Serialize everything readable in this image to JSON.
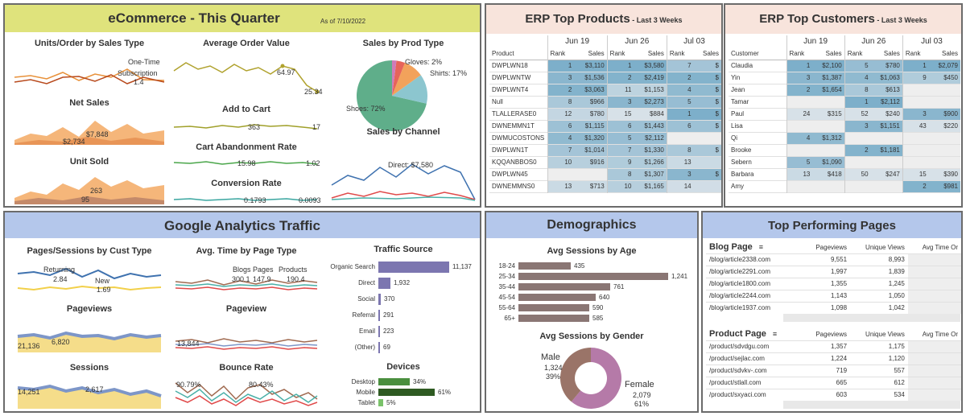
{
  "ecommerce": {
    "title": "eCommerce - This Quarter",
    "as_of": "As of 7/10/2022",
    "units_order": {
      "title": "Units/Order by Sales Type",
      "one_time": "One-Time",
      "subscription": "Subscription",
      "value": "1.4"
    },
    "aov": {
      "title": "Average Order Value",
      "v1": "64.97",
      "v2": "25.34"
    },
    "prod_type": {
      "title": "Sales by Prod Type",
      "gloves": "Gloves: 2%",
      "shirts": "Shirts: 17%",
      "shoes": "Shoes: 72%"
    },
    "net_sales": {
      "title": "Net Sales",
      "v1": "$7,848",
      "v2": "$2,734"
    },
    "add_cart": {
      "title": "Add to Cart",
      "v1": "363",
      "v2": "17"
    },
    "channel": {
      "title": "Sales by Channel",
      "direct": "Direct: $7,580"
    },
    "unit_sold": {
      "title": "Unit Sold",
      "v1": "263",
      "v2": "95"
    },
    "cart_abandon": {
      "title": "Cart Abandonment Rate",
      "v1": "15.98",
      "v2": "1.02"
    },
    "conversion": {
      "title": "Conversion Rate",
      "v1": "0.1793",
      "v2": "0.0093"
    }
  },
  "erp_products": {
    "title": "ERP Top Products",
    "subtitle": " - Last 3 Weeks",
    "row_header": "Product",
    "weeks": [
      "Jun 19",
      "Jun 26",
      "Jul 03"
    ],
    "sub": [
      "Rank",
      "Sales"
    ],
    "rows": [
      {
        "name": "DWPLWN18",
        "c": [
          [
            "1",
            "$3,110"
          ],
          [
            "1",
            "$3,580"
          ],
          [
            "7",
            "$"
          ]
        ]
      },
      {
        "name": "DWPLWNTW",
        "c": [
          [
            "3",
            "$1,536"
          ],
          [
            "2",
            "$2,419"
          ],
          [
            "2",
            "$"
          ]
        ]
      },
      {
        "name": "DWPLWNT4",
        "c": [
          [
            "2",
            "$3,063"
          ],
          [
            "11",
            "$1,153"
          ],
          [
            "4",
            "$"
          ]
        ]
      },
      {
        "name": "Null",
        "c": [
          [
            "8",
            "$966"
          ],
          [
            "3",
            "$2,273"
          ],
          [
            "5",
            "$"
          ]
        ]
      },
      {
        "name": "TLALLERASE0",
        "c": [
          [
            "12",
            "$780"
          ],
          [
            "15",
            "$884"
          ],
          [
            "1",
            "$"
          ]
        ]
      },
      {
        "name": "DWNEMMN1T",
        "c": [
          [
            "6",
            "$1,115"
          ],
          [
            "6",
            "$1,443"
          ],
          [
            "6",
            "$"
          ]
        ]
      },
      {
        "name": "DWMUCOSTONS",
        "c": [
          [
            "4",
            "$1,320"
          ],
          [
            "5",
            "$2,112"
          ],
          [
            "",
            ""
          ]
        ]
      },
      {
        "name": "DWPLWN1T",
        "c": [
          [
            "7",
            "$1,014"
          ],
          [
            "7",
            "$1,330"
          ],
          [
            "8",
            "$"
          ]
        ]
      },
      {
        "name": "KQQANBBOS0",
        "c": [
          [
            "10",
            "$916"
          ],
          [
            "9",
            "$1,266"
          ],
          [
            "13",
            ""
          ]
        ]
      },
      {
        "name": "DWPLWN45",
        "c": [
          [
            "",
            ""
          ],
          [
            "8",
            "$1,307"
          ],
          [
            "3",
            "$"
          ]
        ]
      },
      {
        "name": "DWNEMMNS0",
        "c": [
          [
            "13",
            "$713"
          ],
          [
            "10",
            "$1,165"
          ],
          [
            "14",
            ""
          ]
        ]
      }
    ]
  },
  "erp_customers": {
    "title": "ERP Top Customers",
    "subtitle": " - Last 3 Weeks",
    "row_header": "Customer",
    "weeks": [
      "Jun 19",
      "Jun 26",
      "Jul 03"
    ],
    "sub": [
      "Rank",
      "Sales"
    ],
    "rows": [
      {
        "name": "Claudia",
        "c": [
          [
            "1",
            "$2,100"
          ],
          [
            "5",
            "$780"
          ],
          [
            "1",
            "$2,079"
          ]
        ]
      },
      {
        "name": "Yin",
        "c": [
          [
            "3",
            "$1,387"
          ],
          [
            "4",
            "$1,063"
          ],
          [
            "9",
            "$450"
          ]
        ]
      },
      {
        "name": "Jean",
        "c": [
          [
            "2",
            "$1,654"
          ],
          [
            "8",
            "$613"
          ],
          [
            "",
            ""
          ]
        ]
      },
      {
        "name": "Tamar",
        "c": [
          [
            "",
            ""
          ],
          [
            "1",
            "$2,112"
          ],
          [
            "",
            ""
          ]
        ]
      },
      {
        "name": "Paul",
        "c": [
          [
            "24",
            "$315"
          ],
          [
            "52",
            "$240"
          ],
          [
            "3",
            "$900"
          ]
        ]
      },
      {
        "name": "Lisa",
        "c": [
          [
            "",
            ""
          ],
          [
            "3",
            "$1,151"
          ],
          [
            "43",
            "$220"
          ]
        ]
      },
      {
        "name": "Qi",
        "c": [
          [
            "4",
            "$1,312"
          ],
          [
            "",
            ""
          ],
          [
            "",
            ""
          ]
        ]
      },
      {
        "name": "Brooke",
        "c": [
          [
            "",
            ""
          ],
          [
            "2",
            "$1,181"
          ],
          [
            "",
            ""
          ]
        ]
      },
      {
        "name": "Sebern",
        "c": [
          [
            "5",
            "$1,090"
          ],
          [
            "",
            ""
          ],
          [
            "",
            ""
          ]
        ]
      },
      {
        "name": "Barbara",
        "c": [
          [
            "13",
            "$418"
          ],
          [
            "50",
            "$247"
          ],
          [
            "15",
            "$390"
          ]
        ]
      },
      {
        "name": "Amy",
        "c": [
          [
            "",
            ""
          ],
          [
            "",
            ""
          ],
          [
            "2",
            "$981"
          ]
        ]
      }
    ]
  },
  "ga": {
    "title": "Google Analytics Traffic",
    "pages_sessions": {
      "title": "Pages/Sessions by Cust Type",
      "returning": "Returning",
      "v1": "2.84",
      "new": "New",
      "v2": "1.69"
    },
    "avg_time": {
      "title": "Avg. Time by Page Type",
      "blogs": "Blogs Pages",
      "products": "Products",
      "v1": "300.1",
      "v2": "147.9",
      "v3": "190.4"
    },
    "pageviews": {
      "title": "Pageviews",
      "v1": "21,136",
      "v2": "6,820"
    },
    "pageview": {
      "title": "Pageview",
      "v1": "13,844"
    },
    "sessions": {
      "title": "Sessions",
      "v1": "14,251",
      "v2": "2,617"
    },
    "bounce": {
      "title": "Bounce Rate",
      "v1": "90.79%",
      "v2": "80.43%"
    },
    "traffic": {
      "title": "Traffic Source",
      "rows": [
        {
          "label": "Organic Search",
          "value": "11,137",
          "n": 11137
        },
        {
          "label": "Direct",
          "value": "1,932",
          "n": 1932
        },
        {
          "label": "Social",
          "value": "370",
          "n": 370
        },
        {
          "label": "Referral",
          "value": "291",
          "n": 291
        },
        {
          "label": "Email",
          "value": "223",
          "n": 223
        },
        {
          "label": "(Other)",
          "value": "69",
          "n": 69
        }
      ]
    },
    "devices": {
      "title": "Devices",
      "rows": [
        {
          "label": "Desktop",
          "value": "34%",
          "n": 34,
          "color": "#4a8f3e"
        },
        {
          "label": "Mobile",
          "value": "61%",
          "n": 61,
          "color": "#2e5a22"
        },
        {
          "label": "Tablet",
          "value": "5%",
          "n": 5,
          "color": "#7ac26a"
        }
      ]
    }
  },
  "demographics": {
    "title": "Demographics",
    "age": {
      "title": "Avg Sessions by Age",
      "rows": [
        {
          "label": "18-24",
          "value": "435",
          "n": 435
        },
        {
          "label": "25-34",
          "value": "1,241",
          "n": 1241
        },
        {
          "label": "35-44",
          "value": "761",
          "n": 761
        },
        {
          "label": "45-54",
          "value": "640",
          "n": 640
        },
        {
          "label": "55-64",
          "value": "590",
          "n": 590
        },
        {
          "label": "65+",
          "value": "585",
          "n": 585
        }
      ]
    },
    "gender": {
      "title": "Avg Sessions by Gender",
      "male": "Male",
      "male_v": "1,324",
      "male_p": "39%",
      "female": "Female",
      "female_v": "2,079",
      "female_p": "61%",
      "male_n": 39,
      "female_n": 61
    }
  },
  "top_pages": {
    "title": "Top Performing Pages",
    "blog": {
      "title": "Blog Page",
      "cols": [
        "Pageviews",
        "Unique Views",
        "Avg Time Or"
      ],
      "rows": [
        {
          "p": "/blog/article2338.com",
          "a": "9,551",
          "b": "8,993"
        },
        {
          "p": "/blog/article2291.com",
          "a": "1,997",
          "b": "1,839"
        },
        {
          "p": "/blog/article1800.com",
          "a": "1,355",
          "b": "1,245"
        },
        {
          "p": "/blog/article2244.com",
          "a": "1,143",
          "b": "1,050"
        },
        {
          "p": "/blog/article1937.com",
          "a": "1,098",
          "b": "1,042"
        }
      ]
    },
    "product": {
      "title": "Product Page",
      "cols": [
        "Pageviews",
        "Unique Views",
        "Avg Time Or"
      ],
      "rows": [
        {
          "p": "/product/sdvdgu.com",
          "a": "1,357",
          "b": "1,175"
        },
        {
          "p": "/product/sejlac.com",
          "a": "1,224",
          "b": "1,120"
        },
        {
          "p": "/product/sdvkv-.com",
          "a": "719",
          "b": "557"
        },
        {
          "p": "/product/stlall.com",
          "a": "665",
          "b": "612"
        },
        {
          "p": "/product/sxyaci.com",
          "a": "603",
          "b": "534"
        }
      ]
    }
  }
}
